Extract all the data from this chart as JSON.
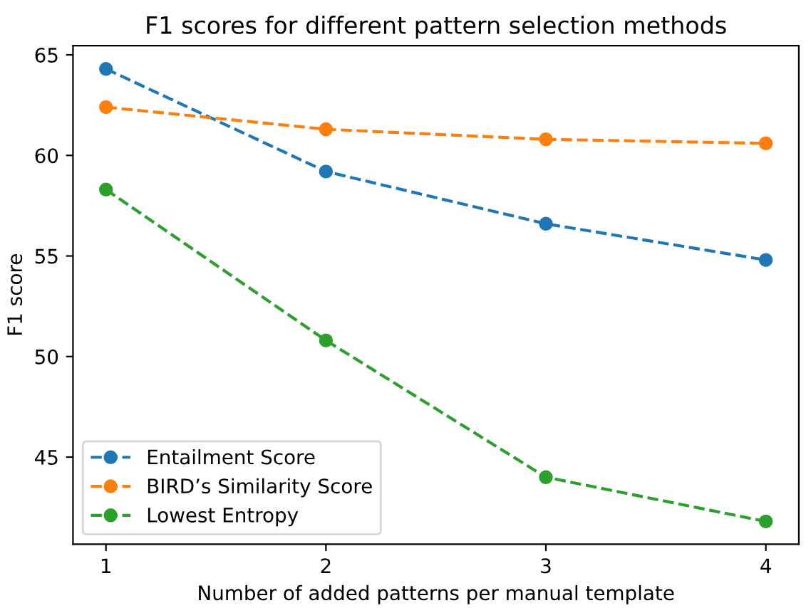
{
  "chart_data": {
    "type": "line",
    "title": "F1 scores for different pattern selection methods",
    "xlabel": "Number of added patterns per manual template",
    "ylabel": "F1 score",
    "x": [
      1,
      2,
      3,
      4
    ],
    "series": [
      {
        "name": "Entailment Score",
        "color": "#1f77b4",
        "values": [
          64.3,
          59.2,
          56.6,
          54.8
        ]
      },
      {
        "name": "BIRD’s Similarity Score",
        "color": "#ff7f0e",
        "values": [
          62.4,
          61.3,
          60.8,
          60.6
        ]
      },
      {
        "name": "Lowest Entropy",
        "color": "#2ca02c",
        "values": [
          58.3,
          50.8,
          44.0,
          41.8
        ]
      }
    ],
    "xlim": [
      0.85,
      4.15
    ],
    "ylim": [
      40.67,
      65.46
    ],
    "xticks": [
      1,
      2,
      3,
      4
    ],
    "yticks": [
      45,
      50,
      55,
      60,
      65
    ],
    "grid": false,
    "legend": "bottom left",
    "marker": "circle",
    "line_style": "dashed"
  }
}
